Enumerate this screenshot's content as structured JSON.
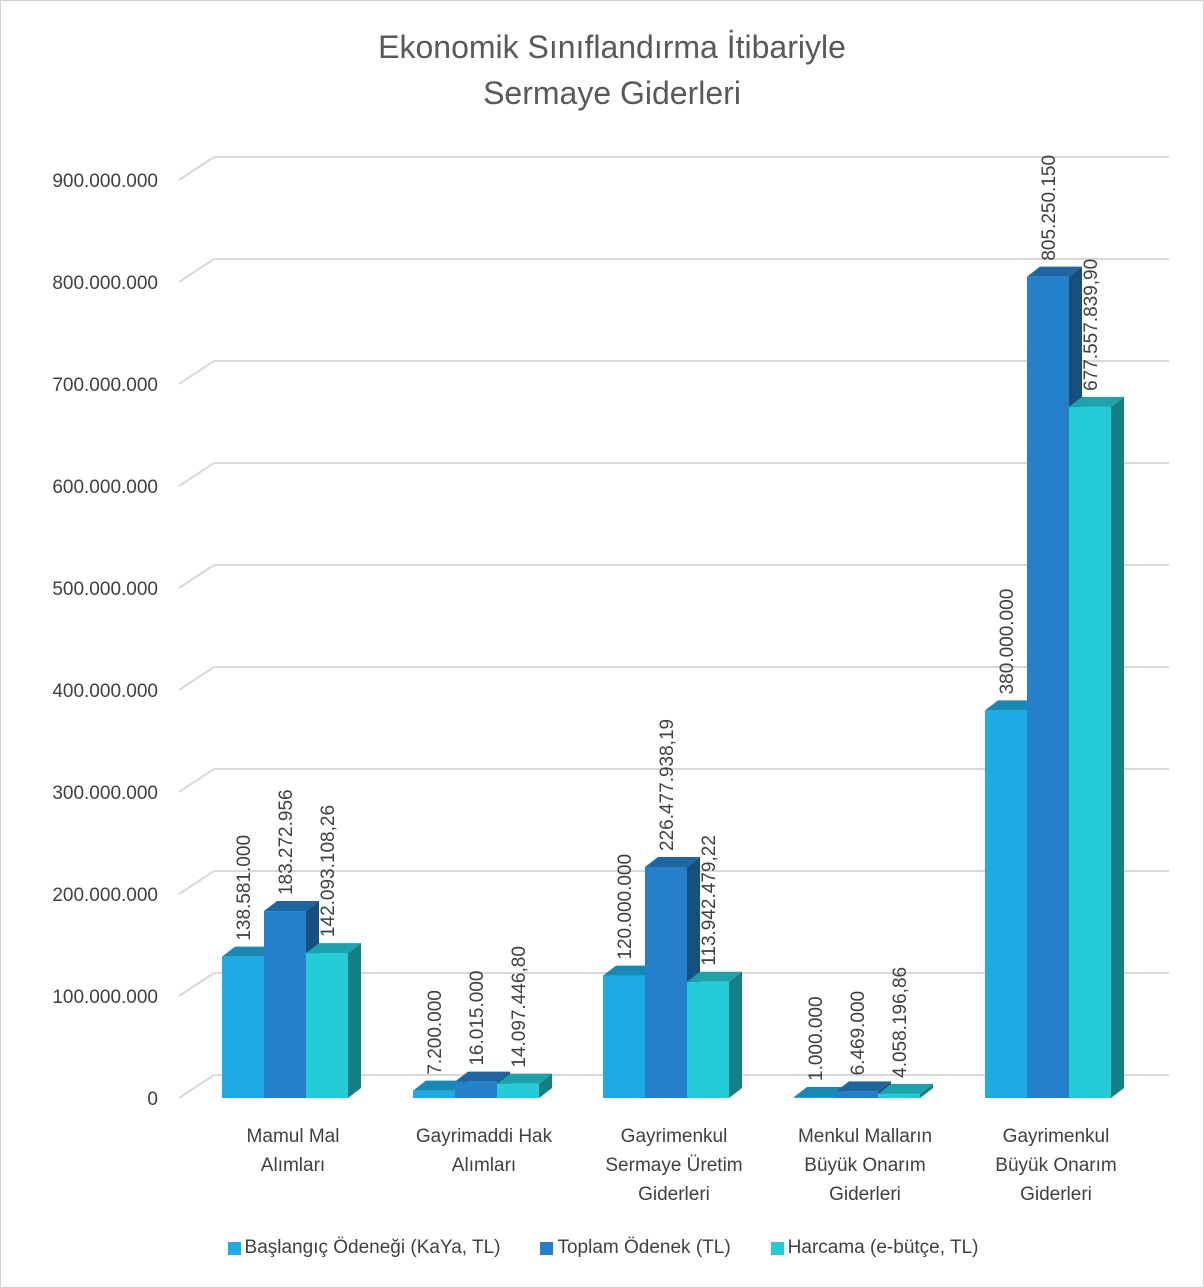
{
  "chart_data": {
    "type": "bar",
    "title_lines": [
      "Ekonomik Sınıflandırma İtibariyle",
      "Sermaye Giderleri"
    ],
    "categories": [
      [
        "Mamul Mal",
        "Alımları"
      ],
      [
        "Gayrimaddi Hak",
        "Alımları"
      ],
      [
        "Gayrimenkul",
        "Sermaye Üretim",
        "Giderleri"
      ],
      [
        "Menkul Malların",
        "Büyük Onarım",
        "Giderleri"
      ],
      [
        "Gayrimenkul",
        "Büyük Onarım",
        "Giderleri"
      ]
    ],
    "series": [
      {
        "name": "Başlangıç Ödeneği (KaYa, TL)",
        "color": "#1cabe2",
        "values": [
          138581000,
          7200000,
          120000000,
          1000000,
          380000000
        ],
        "labels": [
          "138.581.000",
          "7.200.000",
          "120.000.000",
          "1.000.000",
          "380.000.000"
        ]
      },
      {
        "name": "Toplam Ödenek (TL)",
        "color": "#2580cb",
        "values": [
          183272956,
          16015000,
          226477938.19,
          6469000,
          805250150
        ],
        "labels": [
          "183.272.956",
          "16.015.000",
          "226.477.938,19",
          "6.469.000",
          "805.250.150"
        ]
      },
      {
        "name": "Harcama (e-bütçe, TL)",
        "color": "#23ccd6",
        "values": [
          142093108.26,
          14097446.8,
          113942479.22,
          4058196.86,
          677557839.9
        ],
        "labels": [
          "142.093.108,26",
          "14.097.446,80",
          "113.942.479,22",
          "4.058.196,86",
          "677.557.839,90"
        ]
      }
    ],
    "yticks": [
      0,
      100000000,
      200000000,
      300000000,
      400000000,
      500000000,
      600000000,
      700000000,
      800000000,
      900000000
    ],
    "ytick_labels": [
      "0",
      "100.000.000",
      "200.000.000",
      "300.000.000",
      "400.000.000",
      "500.000.000",
      "600.000.000",
      "700.000.000",
      "800.000.000",
      "900.000.000"
    ],
    "ylim": [
      0,
      900000000
    ],
    "grid": true,
    "legend_position": "bottom",
    "style": "3d-clustered-column"
  }
}
